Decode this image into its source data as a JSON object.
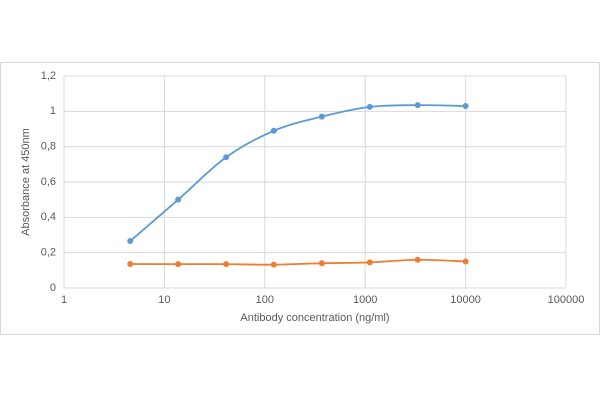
{
  "chart_data": {
    "type": "line",
    "x_label": "Antibody concentration (ng/ml)",
    "y_label": "Absorbance at 450nm",
    "x": [
      4.57,
      13.7,
      41.2,
      123,
      370,
      1111,
      3333,
      10000
    ],
    "series": [
      {
        "color": "#5b9bd5",
        "values": [
          0.266,
          0.5,
          0.74,
          0.89,
          0.97,
          1.025,
          1.035,
          1.03
        ]
      },
      {
        "color": "#ed7d31",
        "values": [
          0.136,
          0.135,
          0.135,
          0.132,
          0.14,
          0.145,
          0.16,
          0.15
        ]
      }
    ],
    "xscale": "log",
    "xlim": [
      1,
      100000
    ],
    "xticks": [
      1,
      10,
      100,
      1000,
      10000,
      100000
    ],
    "ylim": [
      0,
      1.2
    ],
    "yticks": [
      0,
      {
        "value": 0.2,
        "label": "0,2"
      },
      {
        "value": 0.4,
        "label": "0,4"
      },
      {
        "value": 0.6,
        "label": "0,6"
      },
      {
        "value": 0.8,
        "label": "0,8"
      },
      1,
      {
        "value": 1.2,
        "label": "1,2"
      }
    ],
    "grid": true,
    "smooth": true
  }
}
